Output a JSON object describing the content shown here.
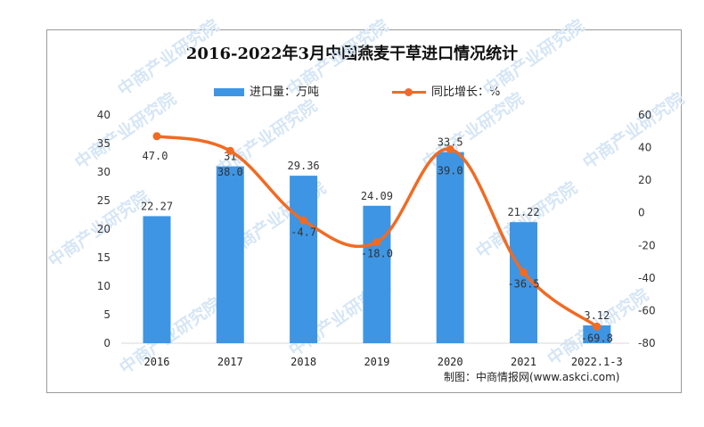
{
  "chart_data": {
    "type": "bar+line",
    "title": "2016-2022年3月中国燕麦干草进口情况统计",
    "categories": [
      "2016",
      "2017",
      "2018",
      "2019",
      "2020",
      "2021",
      "2022.1-3"
    ],
    "series": [
      {
        "name": "进口量：万吨",
        "type": "bar",
        "axis": "left",
        "values": [
          22.27,
          31,
          29.36,
          24.09,
          33.5,
          21.22,
          3.12
        ],
        "labels": [
          "22.27",
          "31",
          "29.36",
          "24.09",
          "33.5",
          "21.22",
          "3.12"
        ]
      },
      {
        "name": "同比增长：%",
        "type": "line",
        "axis": "right",
        "values": [
          47.0,
          38.0,
          -4.7,
          -18.0,
          39.0,
          -36.5,
          -69.8
        ],
        "labels": [
          "47.0",
          "38.0",
          "-4.7",
          "-18.0",
          "39.0",
          "-36.5",
          "-69.8"
        ]
      }
    ],
    "y_left": {
      "min": 0,
      "max": 40,
      "ticks": [
        0,
        5,
        10,
        15,
        20,
        25,
        30,
        35,
        40
      ]
    },
    "y_right": {
      "min": -80,
      "max": 60,
      "ticks": [
        -80,
        -60,
        -40,
        -20,
        0,
        20,
        40,
        60
      ]
    },
    "legend_position": "top",
    "grid": false,
    "colors": {
      "bar": "#3e95e4",
      "line": "#f06b23"
    },
    "source": "制图：中商情报网(www.askci.com)",
    "watermark": "中商产业研究院"
  }
}
